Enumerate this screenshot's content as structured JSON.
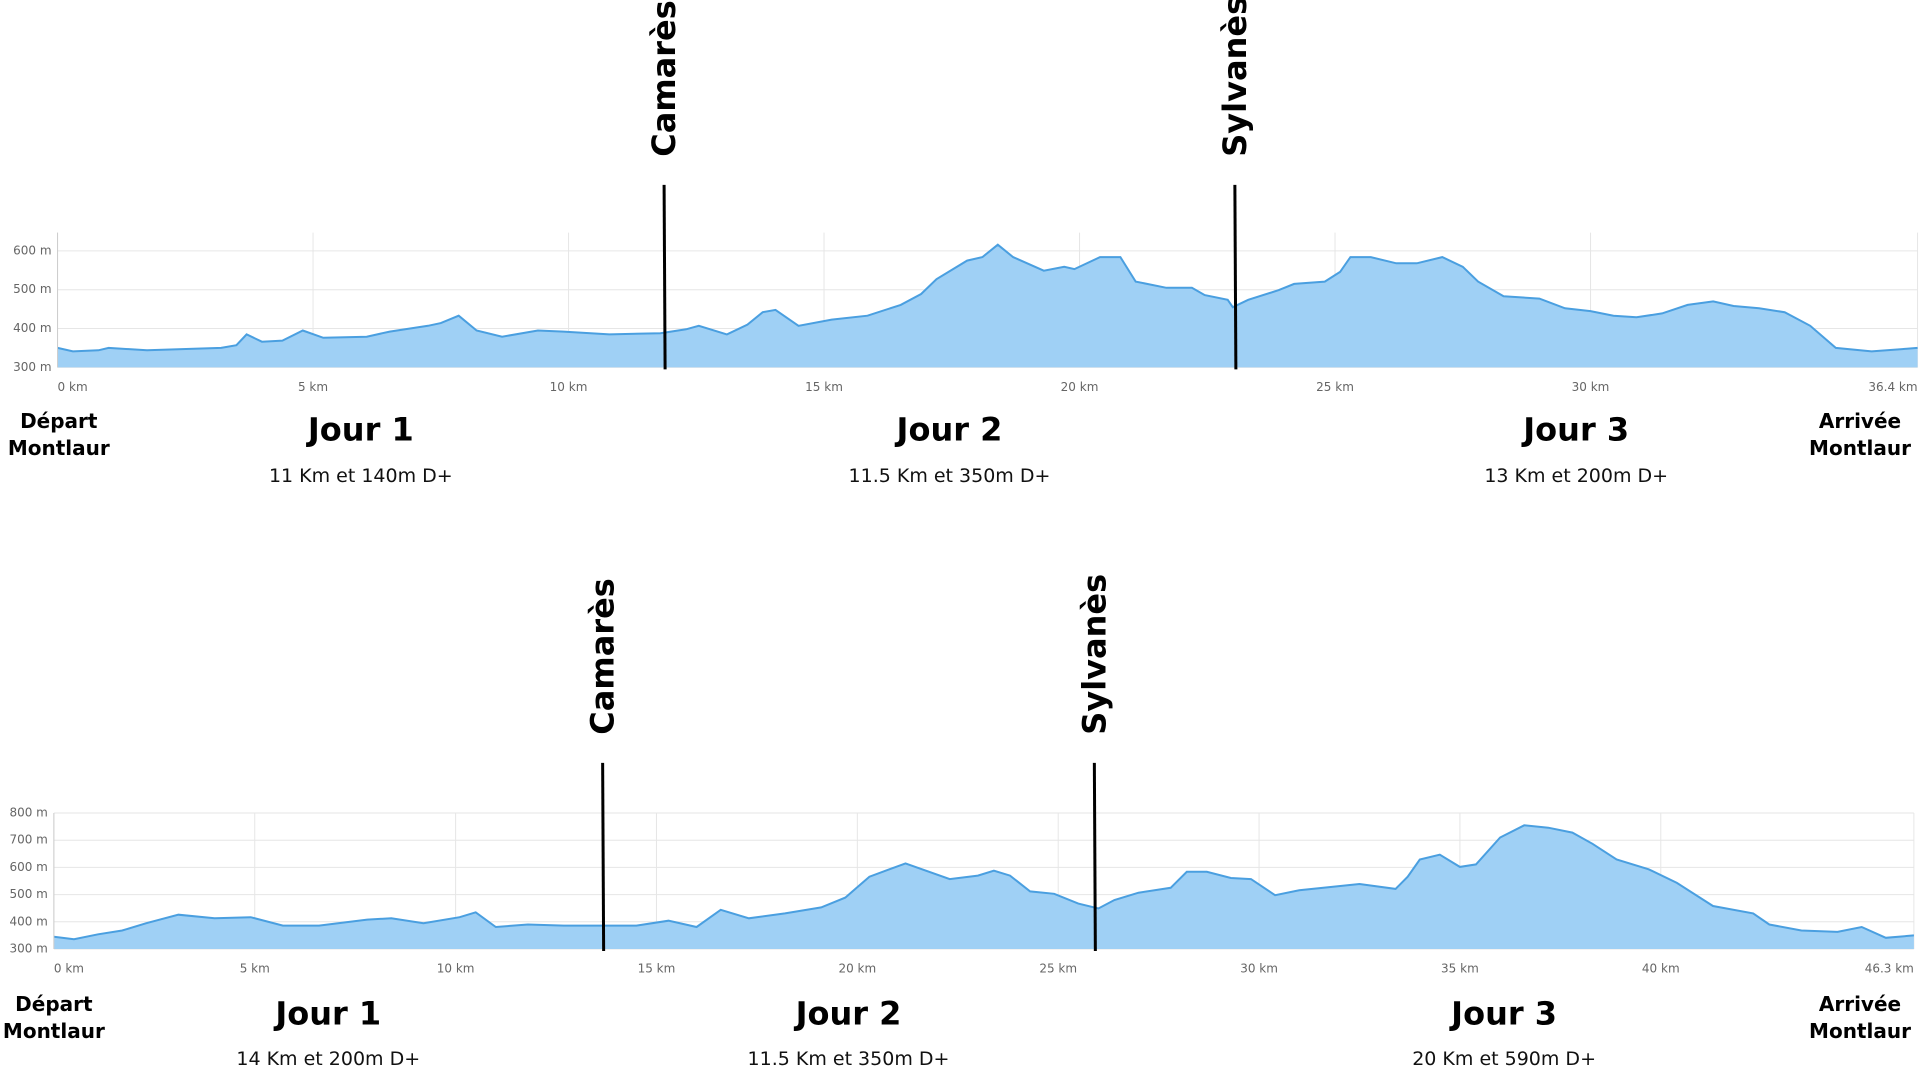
{
  "chart_data": [
    {
      "type": "area",
      "color": "#4a9fe0",
      "fill": "#9fd0f5",
      "grid": true,
      "x": [
        0,
        0.3,
        0.8,
        1.0,
        1.75,
        3.2,
        3.5,
        3.7,
        4.0,
        4.4,
        4.8,
        5.2,
        6.05,
        6.5,
        7.25,
        7.5,
        7.85,
        8.2,
        8.7,
        9.4,
        9.9,
        10.8,
        11.8,
        12.3,
        12.55,
        13.1,
        13.5,
        13.8,
        14.05,
        14.5,
        15.15,
        15.85,
        16.5,
        16.9,
        17.2,
        17.8,
        18.1,
        18.4,
        18.7,
        19.3,
        19.7,
        19.9,
        20.4,
        20.8,
        21.1,
        21.7,
        22.2,
        22.45,
        22.9,
        23.0,
        23.3,
        23.9,
        24.2,
        24.8,
        25.1,
        25.3,
        25.7,
        26.2,
        26.6,
        27.1,
        27.5,
        27.8,
        28.3,
        29.0,
        29.5,
        30.0,
        30.45,
        30.9,
        31.4,
        31.9,
        32.4,
        32.8,
        33.3,
        33.8,
        34.3,
        34.8,
        35.5,
        36.1,
        36.4
      ],
      "values": [
        350,
        341,
        344,
        350,
        344,
        350,
        357,
        385,
        366,
        369,
        395,
        376,
        379,
        392,
        407,
        414,
        433,
        395,
        379,
        395,
        392,
        385,
        388,
        398,
        407,
        385,
        410,
        442,
        448,
        407,
        423,
        433,
        461,
        489,
        527,
        575,
        584,
        616,
        584,
        549,
        559,
        553,
        584,
        584,
        521,
        505,
        505,
        486,
        474,
        455,
        474,
        499,
        515,
        521,
        546,
        584,
        584,
        568,
        568,
        584,
        559,
        521,
        483,
        477,
        452,
        445,
        433,
        429,
        439,
        461,
        470,
        458,
        452,
        442,
        407,
        350,
        341,
        347,
        350
      ],
      "xlim": [
        0,
        36.4
      ],
      "ylim": [
        300,
        647
      ],
      "xticks": [
        {
          "value": 0,
          "label": "0 km"
        },
        {
          "value": 5,
          "label": "5 km"
        },
        {
          "value": 10,
          "label": "10 km"
        },
        {
          "value": 15,
          "label": "15 km"
        },
        {
          "value": 20,
          "label": "20 km"
        },
        {
          "value": 25,
          "label": "25 km"
        },
        {
          "value": 30,
          "label": "30 km"
        },
        {
          "value": 36.4,
          "label": "36.4 km"
        }
      ],
      "yticks": [
        {
          "value": 300,
          "label": "300 m"
        },
        {
          "value": 400,
          "label": "400 m"
        },
        {
          "value": 500,
          "label": "500 m"
        },
        {
          "value": 600,
          "label": "600 m"
        }
      ],
      "markers": [
        {
          "label": "Camarès",
          "x": 11.87
        },
        {
          "label": "Sylvanès",
          "x": 23.04
        }
      ],
      "stages": [
        {
          "title": "Jour 1",
          "subtitle": "11 Km et 140m D+"
        },
        {
          "title": "Jour 2",
          "subtitle": "11.5 Km et 350m D+"
        },
        {
          "title": "Jour 3",
          "subtitle": "13 Km et 200m D+"
        }
      ],
      "start_label": "Départ Montlaur",
      "end_label": "Arrivée Montlaur"
    },
    {
      "type": "area",
      "color": "#4a9fe0",
      "fill": "#9fd0f5",
      "grid": true,
      "x": [
        0,
        0.5,
        1.1,
        1.7,
        2.3,
        3.1,
        4.0,
        4.9,
        5.7,
        6.6,
        7.8,
        8.4,
        9.2,
        10.1,
        10.5,
        11.0,
        11.8,
        12.7,
        13.75,
        14.5,
        15.3,
        16.0,
        16.6,
        17.3,
        18.2,
        19.1,
        19.7,
        20.3,
        21.2,
        22.3,
        23.0,
        23.4,
        23.8,
        24.3,
        24.9,
        25.5,
        26.0,
        26.4,
        27.0,
        27.8,
        28.2,
        28.7,
        29.3,
        29.8,
        30.4,
        31.0,
        31.9,
        32.5,
        33.4,
        33.7,
        34.0,
        34.5,
        35.0,
        35.4,
        36.0,
        36.6,
        37.2,
        37.8,
        38.3,
        38.9,
        39.7,
        40.4,
        41.3,
        42.3,
        42.7,
        43.5,
        44.4,
        45.0,
        45.6,
        46.3
      ],
      "values": [
        345,
        336,
        354,
        368,
        395,
        426,
        413,
        417,
        386,
        386,
        408,
        413,
        395,
        417,
        435,
        381,
        390,
        386,
        386,
        386,
        404,
        381,
        444,
        413,
        431,
        453,
        489,
        566,
        615,
        557,
        570,
        588,
        570,
        512,
        503,
        467,
        449,
        480,
        507,
        525,
        584,
        584,
        561,
        557,
        498,
        516,
        530,
        539,
        521,
        566,
        629,
        647,
        602,
        611,
        710,
        755,
        746,
        728,
        687,
        629,
        593,
        543,
        458,
        431,
        390,
        368,
        363,
        381,
        341,
        350
      ],
      "xlim": [
        0,
        46.3
      ],
      "ylim": [
        300,
        800
      ],
      "xticks": [
        {
          "value": 0,
          "label": "0 km"
        },
        {
          "value": 5,
          "label": "5 km"
        },
        {
          "value": 10,
          "label": "10 km"
        },
        {
          "value": 15,
          "label": "15 km"
        },
        {
          "value": 20,
          "label": "20 km"
        },
        {
          "value": 25,
          "label": "25 km"
        },
        {
          "value": 30,
          "label": "30 km"
        },
        {
          "value": 35,
          "label": "35 km"
        },
        {
          "value": 40,
          "label": "40 km"
        },
        {
          "value": 46.3,
          "label": "46.3 km"
        }
      ],
      "yticks": [
        {
          "value": 300,
          "label": "300 m"
        },
        {
          "value": 400,
          "label": "400 m"
        },
        {
          "value": 500,
          "label": "500 m"
        },
        {
          "value": 600,
          "label": "600 m"
        },
        {
          "value": 700,
          "label": "700 m"
        },
        {
          "value": 800,
          "label": "800 m"
        }
      ],
      "markers": [
        {
          "label": "Camarès",
          "x": 13.66
        },
        {
          "label": "Sylvanès",
          "x": 25.9
        }
      ],
      "stages": [
        {
          "title": "Jour 1",
          "subtitle": "14 Km et 200m D+"
        },
        {
          "title": "Jour 2",
          "subtitle": "11.5 Km et 350m D+"
        },
        {
          "title": "Jour 3",
          "subtitle": "20 Km et 590m D+"
        }
      ],
      "start_label": "Départ Montlaur",
      "end_label": "Arrivée Montlaur"
    }
  ]
}
